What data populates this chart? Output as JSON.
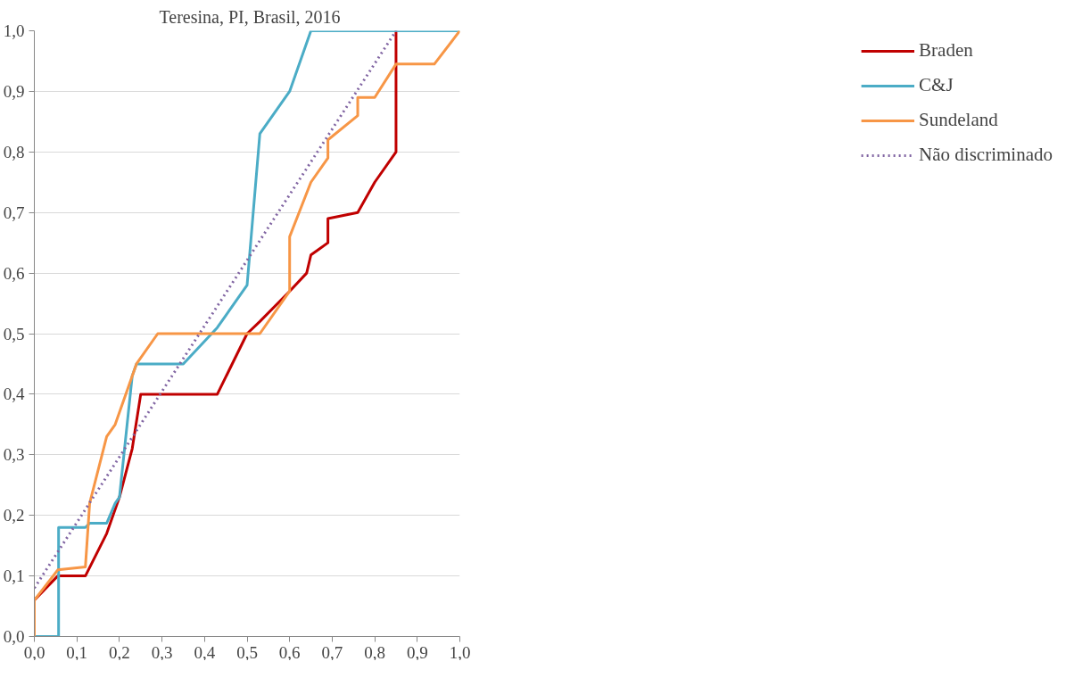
{
  "chart_data": {
    "type": "line",
    "title": "Teresina, PI, Brasil, 2016",
    "xlim": [
      0,
      1
    ],
    "ylim": [
      0,
      1
    ],
    "xticks": [
      {
        "value": 0,
        "label": "0,0"
      },
      {
        "value": 0.1,
        "label": "0,1"
      },
      {
        "value": 0.2,
        "label": "0,2"
      },
      {
        "value": 0.3,
        "label": "0,3"
      },
      {
        "value": 0.4,
        "label": "0,4"
      },
      {
        "value": 0.5,
        "label": "0,5"
      },
      {
        "value": 0.6,
        "label": "0,6"
      },
      {
        "value": 0.7,
        "label": "0,7"
      },
      {
        "value": 0.8,
        "label": "0,8"
      },
      {
        "value": 0.9,
        "label": "0,9"
      },
      {
        "value": 1,
        "label": "1,0"
      }
    ],
    "yticks": [
      {
        "value": 0,
        "label": "0,0"
      },
      {
        "value": 0.1,
        "label": "0,1"
      },
      {
        "value": 0.2,
        "label": "0,2"
      },
      {
        "value": 0.3,
        "label": "0,3"
      },
      {
        "value": 0.4,
        "label": "0,4"
      },
      {
        "value": 0.5,
        "label": "0,5"
      },
      {
        "value": 0.6,
        "label": "0,6"
      },
      {
        "value": 0.7,
        "label": "0,7"
      },
      {
        "value": 0.8,
        "label": "0,8"
      },
      {
        "value": 0.9,
        "label": "0,9"
      },
      {
        "value": 1,
        "label": "1,0"
      }
    ],
    "grid": "y",
    "legend": "right",
    "marker": "none",
    "series": [
      {
        "name": "Braden",
        "color": "#c00000",
        "line_style": "solid",
        "x": [
          0,
          0.055,
          0.12,
          0.17,
          0.2,
          0.23,
          0.25,
          0.43,
          0.5,
          0.53,
          0.6,
          0.64,
          0.65,
          0.67,
          0.69,
          0.69,
          0.76,
          0.8,
          0.85,
          0.85
        ],
        "values": [
          0.06,
          0.1,
          0.1,
          0.17,
          0.23,
          0.31,
          0.4,
          0.4,
          0.5,
          0.52,
          0.57,
          0.6,
          0.63,
          0.64,
          0.65,
          0.69,
          0.7,
          0.75,
          0.8,
          1.0
        ]
      },
      {
        "name": "C&J",
        "color": "#4bacc6",
        "line_style": "solid",
        "x": [
          0,
          0.057,
          0.057,
          0.12,
          0.13,
          0.17,
          0.19,
          0.2,
          0.23,
          0.24,
          0.35,
          0.43,
          0.5,
          0.53,
          0.6,
          0.65,
          1.0
        ],
        "values": [
          0,
          0,
          0.18,
          0.18,
          0.187,
          0.187,
          0.22,
          0.23,
          0.43,
          0.45,
          0.45,
          0.51,
          0.58,
          0.83,
          0.9,
          1.0,
          1.0
        ]
      },
      {
        "name": "Sundeland",
        "color": "#f79646",
        "line_style": "solid",
        "x": [
          0,
          0,
          0.055,
          0.12,
          0.13,
          0.17,
          0.19,
          0.24,
          0.29,
          0.53,
          0.6,
          0.6,
          0.65,
          0.69,
          0.69,
          0.76,
          0.76,
          0.8,
          0.85,
          0.94,
          1.0
        ],
        "values": [
          0,
          0.06,
          0.11,
          0.115,
          0.22,
          0.33,
          0.35,
          0.45,
          0.5,
          0.5,
          0.57,
          0.66,
          0.75,
          0.79,
          0.82,
          0.86,
          0.89,
          0.89,
          0.945,
          0.945,
          1.0
        ]
      },
      {
        "name": "Não discriminado",
        "color": "#8064a2",
        "line_style": "dotted",
        "x": [
          0,
          0.85
        ],
        "values": [
          0.08,
          1.0
        ]
      }
    ]
  }
}
